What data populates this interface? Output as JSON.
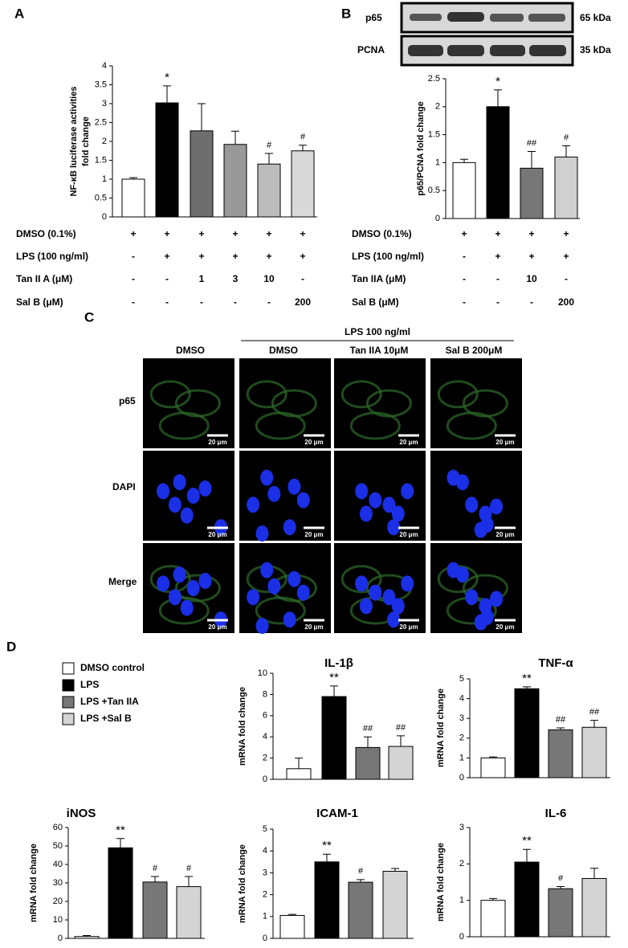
{
  "chart_data": [
    {
      "type": "bar",
      "y_label": [
        "NF-κB luciferase activities",
        "fold change"
      ],
      "categories": [
        null,
        null,
        null,
        null,
        null,
        null
      ],
      "values": [
        1.0,
        3.02,
        2.28,
        1.92,
        1.4,
        1.75
      ],
      "errors": [
        0.04,
        0.45,
        0.72,
        0.35,
        0.28,
        0.15
      ],
      "annotations": [
        null,
        "*",
        null,
        null,
        "#",
        "#"
      ],
      "colors": [
        "#ffffff",
        "#000000",
        "#6e6e6e",
        "#999999",
        "#bcbcbc",
        "#d9d9d9"
      ],
      "ylim": [
        0,
        4
      ],
      "yticks": [
        0,
        0.5,
        1,
        1.5,
        2,
        2.5,
        3,
        3.5,
        4
      ]
    },
    {
      "type": "bar",
      "y_label": "p65/PCNA fold change",
      "categories": [
        null,
        null,
        null,
        null
      ],
      "values": [
        1.0,
        2.0,
        0.9,
        1.1
      ],
      "errors": [
        0.06,
        0.3,
        0.3,
        0.2
      ],
      "annotations": [
        null,
        "*",
        "##",
        "#"
      ],
      "colors": [
        "#ffffff",
        "#000000",
        "#777777",
        "#d0d0d0"
      ],
      "ylim": [
        0,
        2.5
      ],
      "yticks": [
        0,
        0.5,
        1,
        1.5,
        2,
        2.5
      ]
    },
    {
      "type": "bar",
      "title": "IL-1β",
      "y_label": "mRNA fold change",
      "categories": [
        null,
        null,
        null,
        null
      ],
      "values": [
        1.0,
        7.8,
        3.0,
        3.1
      ],
      "errors": [
        1.0,
        1.0,
        1.0,
        1.0
      ],
      "annotations": [
        null,
        "**",
        "##",
        "##"
      ],
      "colors": [
        "#ffffff",
        "#000000",
        "#777777",
        "#d4d4d4"
      ],
      "ylim": [
        0,
        10
      ],
      "yticks": [
        0,
        2,
        4,
        6,
        8,
        10
      ]
    },
    {
      "type": "bar",
      "title": "TNF-α",
      "y_label": "mRNA fold change",
      "categories": [
        null,
        null,
        null,
        null
      ],
      "values": [
        1.0,
        4.5,
        2.42,
        2.55
      ],
      "errors": [
        0.05,
        0.1,
        0.1,
        0.35
      ],
      "annotations": [
        null,
        "**",
        "##",
        "##"
      ],
      "colors": [
        "#ffffff",
        "#000000",
        "#777777",
        "#d4d4d4"
      ],
      "ylim": [
        0,
        5
      ],
      "yticks": [
        0,
        1,
        2,
        3,
        4,
        5
      ]
    },
    {
      "type": "bar",
      "title": "iNOS",
      "y_label": "mRNA fold change",
      "categories": [
        null,
        null,
        null,
        null
      ],
      "values": [
        1.0,
        49,
        30.5,
        28
      ],
      "errors": [
        0.5,
        5,
        3,
        5.5
      ],
      "annotations": [
        null,
        "**",
        "#",
        "#"
      ],
      "colors": [
        "#ffffff",
        "#000000",
        "#777777",
        "#d4d4d4"
      ],
      "ylim": [
        0,
        60
      ],
      "yticks": [
        0,
        10,
        20,
        30,
        40,
        50,
        60
      ]
    },
    {
      "type": "bar",
      "title": "ICAM-1",
      "y_label": "mRNA fold change",
      "categories": [
        null,
        null,
        null,
        null
      ],
      "values": [
        1.05,
        3.5,
        2.57,
        3.07
      ],
      "errors": [
        0.05,
        0.35,
        0.12,
        0.13
      ],
      "annotations": [
        null,
        "**",
        "#",
        null
      ],
      "colors": [
        "#ffffff",
        "#000000",
        "#777777",
        "#d4d4d4"
      ],
      "ylim": [
        0,
        5
      ],
      "yticks": [
        0,
        1,
        2,
        3,
        4,
        5
      ]
    },
    {
      "type": "bar",
      "title": "IL-6",
      "y_label": "mRNA fold change",
      "categories": [
        null,
        null,
        null,
        null
      ],
      "values": [
        1.0,
        2.05,
        1.32,
        1.6
      ],
      "errors": [
        0.05,
        0.35,
        0.06,
        0.28
      ],
      "annotations": [
        null,
        "**",
        "#",
        null
      ],
      "colors": [
        "#ffffff",
        "#000000",
        "#777777",
        "#d4d4d4"
      ],
      "ylim": [
        0,
        3
      ],
      "yticks": [
        0,
        1,
        2,
        3
      ]
    }
  ],
  "panel_labels": [
    "A",
    "B",
    "C",
    "D"
  ],
  "table_a": {
    "rows": [
      {
        "label": "DMSO (0.1%)",
        "cells": [
          "+",
          "+",
          "+",
          "+",
          "+",
          "+"
        ]
      },
      {
        "label": "LPS (100 ng/ml)",
        "cells": [
          "-",
          "+",
          "+",
          "+",
          "+",
          "+"
        ]
      },
      {
        "label": "Tan II A (μM)",
        "cells": [
          "-",
          "-",
          "1",
          "3",
          "10",
          "-"
        ]
      },
      {
        "label": "Sal B (μM)",
        "cells": [
          "-",
          "-",
          "-",
          "-",
          "-",
          "200"
        ]
      }
    ]
  },
  "table_b": {
    "rows": [
      {
        "label": "DMSO (0.1%)",
        "cells": [
          "+",
          "+",
          "+",
          "+"
        ]
      },
      {
        "label": "LPS (100 ng/ml)",
        "cells": [
          "-",
          "+",
          "+",
          "+"
        ]
      },
      {
        "label": "Tan IIA (μM)",
        "cells": [
          "-",
          "-",
          "10",
          "-"
        ]
      },
      {
        "label": "Sal B (μM)",
        "cells": [
          "-",
          "-",
          "-",
          "200"
        ]
      }
    ]
  },
  "blot": {
    "labels": [
      "p65",
      "PCNA"
    ],
    "sizes": [
      "65 kDa",
      "35 kDa"
    ]
  },
  "micrographs": {
    "group_label": "LPS 100 ng/ml",
    "columns": [
      "DMSO",
      "DMSO",
      "Tan IIA 10μM",
      "Sal B  200μM"
    ],
    "rows": [
      "p65",
      "DAPI",
      "Merge"
    ],
    "scale_bar": "20 μm"
  },
  "legend_d": [
    {
      "name": "DMSO control",
      "color": "#ffffff"
    },
    {
      "name": "LPS",
      "color": "#000000"
    },
    {
      "name": "LPS +Tan IIA",
      "color": "#777777"
    },
    {
      "name": "LPS +Sal B",
      "color": "#d4d4d4"
    }
  ]
}
